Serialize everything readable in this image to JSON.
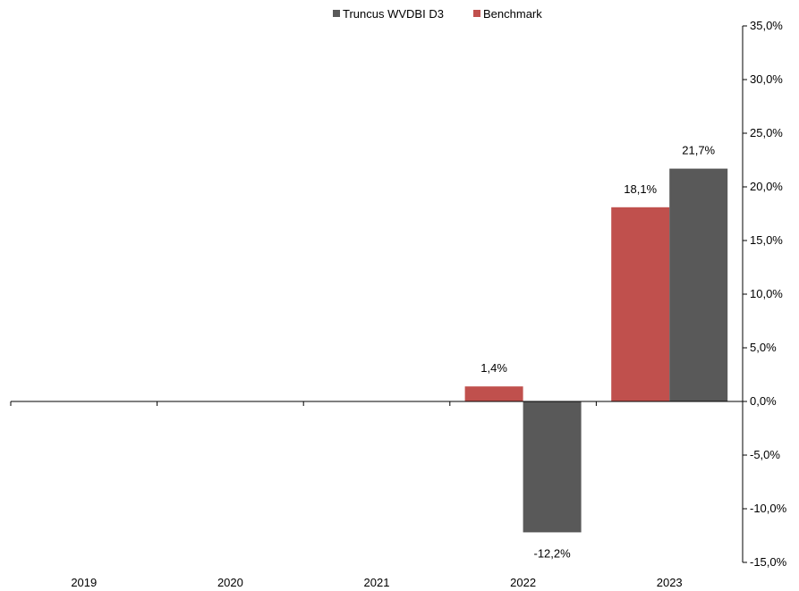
{
  "chart_data": {
    "type": "bar",
    "categories": [
      "2019",
      "2020",
      "2021",
      "2022",
      "2023"
    ],
    "series": [
      {
        "name": "Benchmark",
        "color": "#c0504d",
        "values": [
          null,
          null,
          null,
          1.4,
          18.1
        ],
        "labels": [
          "",
          "",
          "",
          "1,4%",
          "18,1%"
        ]
      },
      {
        "name": "Truncus WVDBI D3",
        "color": "#595959",
        "values": [
          null,
          null,
          null,
          -12.2,
          21.7
        ],
        "labels": [
          "",
          "",
          "",
          "-12,2%",
          "21,7%"
        ]
      }
    ],
    "legend": [
      {
        "name": "Truncus WVDBI D3",
        "color": "#595959"
      },
      {
        "name": "Benchmark",
        "color": "#c0504d"
      }
    ],
    "legend_position": "top",
    "y_axis_position": "right",
    "ylim": [
      -15,
      35
    ],
    "y_ticks": [
      35,
      30,
      25,
      20,
      15,
      10,
      5,
      0,
      -5,
      -10,
      -15
    ],
    "y_tick_labels": [
      "35,0%",
      "30,0%",
      "25,0%",
      "20,0%",
      "15,0%",
      "10,0%",
      "5,0%",
      "0,0%",
      "-5,0%",
      "-10,0%",
      "-15,0%"
    ],
    "grid": false,
    "title": "",
    "xlabel": "",
    "ylabel": ""
  }
}
